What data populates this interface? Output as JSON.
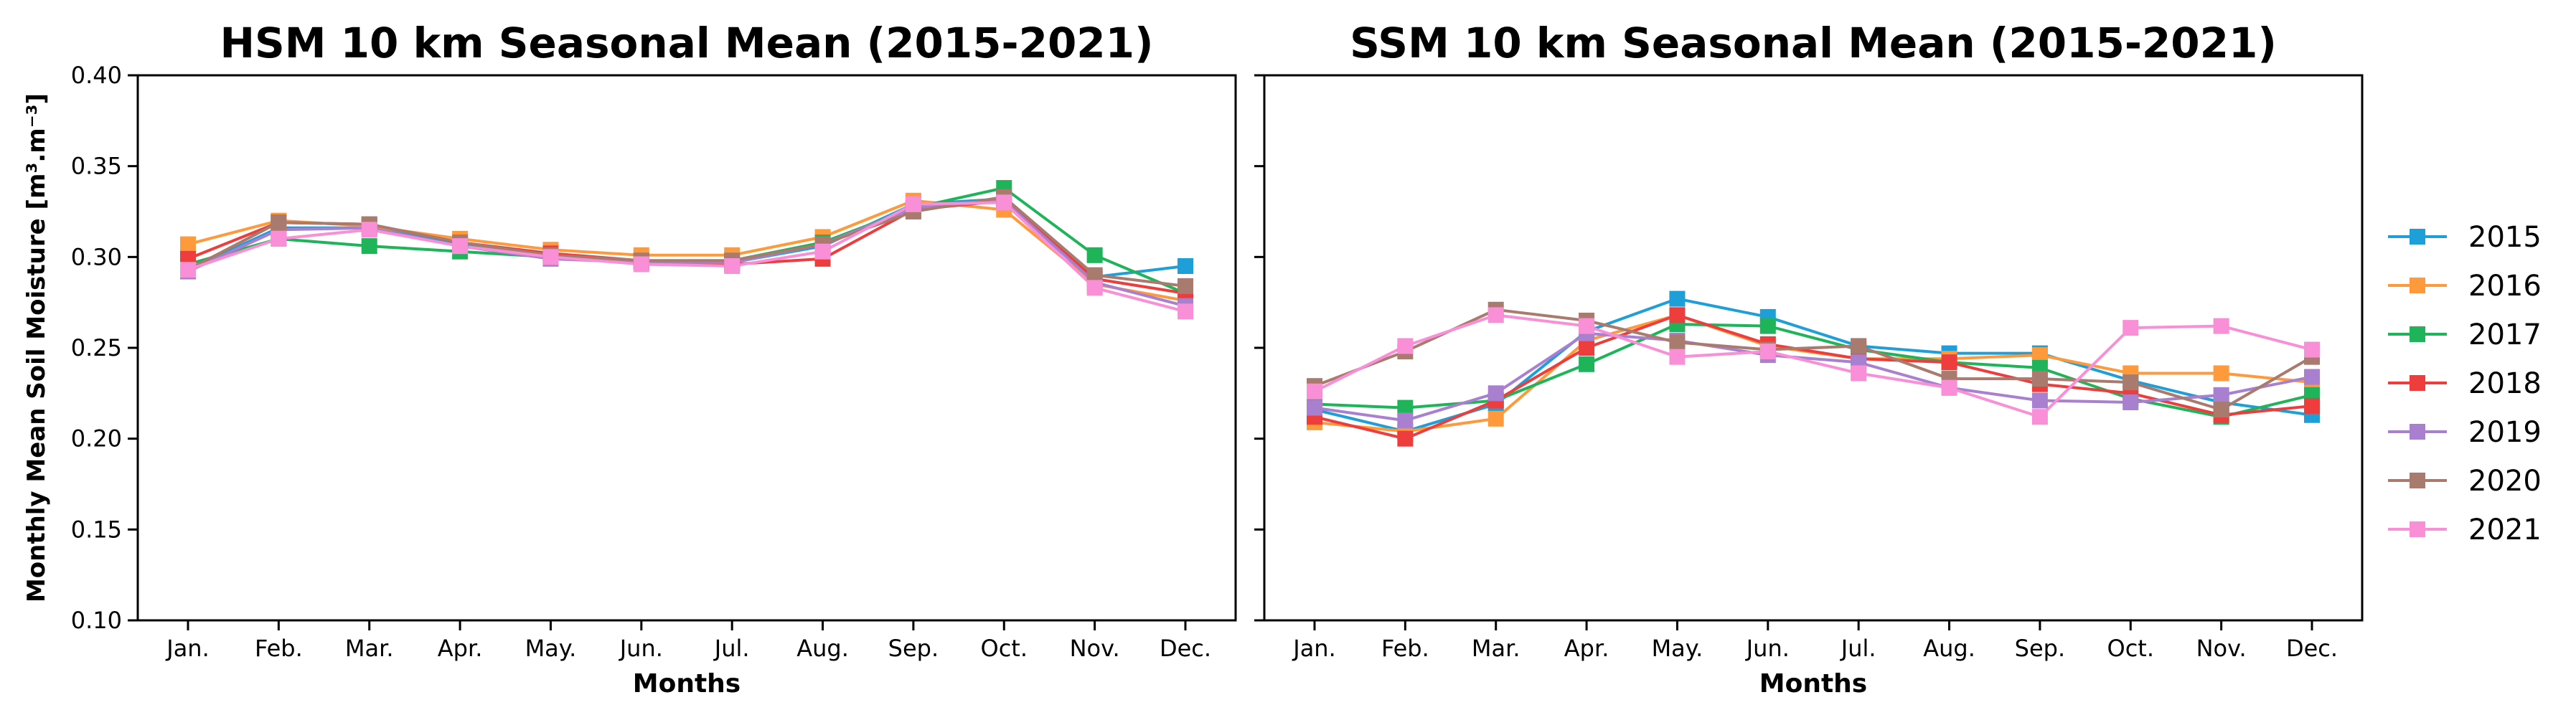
{
  "chart_data": [
    {
      "type": "line",
      "title": "HSM 10 km Seasonal Mean (2015-2021)",
      "xlabel": "Months",
      "ylabel": "Monthly Mean Soil Moisture [m³.m⁻³]",
      "ylim": [
        0.1,
        0.4
      ],
      "yticks": [
        "0.10",
        "0.15",
        "0.20",
        "0.25",
        "0.30",
        "0.35",
        "0.40"
      ],
      "categories": [
        "Jan.",
        "Feb.",
        "Mar.",
        "Apr.",
        "May.",
        "Jun.",
        "Jul.",
        "Aug.",
        "Sep.",
        "Oct.",
        "Nov.",
        "Dec."
      ],
      "series": [
        {
          "name": "2015",
          "values": [
            0.293,
            0.316,
            0.316,
            0.307,
            0.3,
            0.297,
            0.297,
            0.306,
            0.329,
            0.332,
            0.289,
            0.295
          ]
        },
        {
          "name": "2016",
          "values": [
            0.307,
            0.32,
            0.317,
            0.31,
            0.304,
            0.301,
            0.301,
            0.311,
            0.331,
            0.326,
            0.285,
            0.276
          ]
        },
        {
          "name": "2017",
          "values": [
            0.296,
            0.31,
            0.306,
            0.303,
            0.3,
            0.298,
            0.298,
            0.308,
            0.327,
            0.338,
            0.301,
            0.28
          ]
        },
        {
          "name": "2018",
          "values": [
            0.299,
            0.319,
            0.318,
            0.308,
            0.302,
            0.298,
            0.296,
            0.299,
            0.326,
            0.331,
            0.288,
            0.28
          ]
        },
        {
          "name": "2019",
          "values": [
            0.292,
            0.315,
            0.316,
            0.306,
            0.299,
            0.297,
            0.297,
            0.307,
            0.327,
            0.331,
            0.286,
            0.273
          ]
        },
        {
          "name": "2020",
          "values": [
            0.293,
            0.319,
            0.318,
            0.308,
            0.301,
            0.298,
            0.298,
            0.307,
            0.325,
            0.333,
            0.29,
            0.284
          ]
        },
        {
          "name": "2021",
          "values": [
            0.293,
            0.31,
            0.315,
            0.306,
            0.3,
            0.296,
            0.295,
            0.303,
            0.329,
            0.33,
            0.283,
            0.27
          ]
        }
      ]
    },
    {
      "type": "line",
      "title": "SSM 10 km Seasonal Mean (2015-2021)",
      "xlabel": "Months",
      "ylabel": "",
      "ylim": [
        0.1,
        0.4
      ],
      "yticks": [],
      "categories": [
        "Jan.",
        "Feb.",
        "Mar.",
        "Apr.",
        "May.",
        "Jun.",
        "Jul.",
        "Aug.",
        "Sep.",
        "Oct.",
        "Nov.",
        "Dec."
      ],
      "series": [
        {
          "name": "2015",
          "values": [
            0.216,
            0.204,
            0.219,
            0.259,
            0.277,
            0.267,
            0.251,
            0.247,
            0.247,
            0.232,
            0.22,
            0.213
          ]
        },
        {
          "name": "2016",
          "values": [
            0.209,
            0.204,
            0.211,
            0.254,
            0.268,
            0.251,
            0.244,
            0.244,
            0.246,
            0.236,
            0.236,
            0.231
          ]
        },
        {
          "name": "2017",
          "values": [
            0.219,
            0.217,
            0.221,
            0.241,
            0.263,
            0.262,
            0.249,
            0.242,
            0.239,
            0.222,
            0.212,
            0.224
          ]
        },
        {
          "name": "2018",
          "values": [
            0.212,
            0.2,
            0.221,
            0.25,
            0.268,
            0.252,
            0.244,
            0.242,
            0.23,
            0.225,
            0.213,
            0.218
          ]
        },
        {
          "name": "2019",
          "values": [
            0.217,
            0.21,
            0.225,
            0.258,
            0.254,
            0.246,
            0.242,
            0.228,
            0.221,
            0.22,
            0.224,
            0.234
          ]
        },
        {
          "name": "2020",
          "values": [
            0.229,
            0.248,
            0.271,
            0.265,
            0.253,
            0.249,
            0.251,
            0.233,
            0.233,
            0.231,
            0.216,
            0.245
          ]
        },
        {
          "name": "2021",
          "values": [
            0.226,
            0.251,
            0.268,
            0.262,
            0.245,
            0.248,
            0.236,
            0.228,
            0.212,
            0.261,
            0.262,
            0.249
          ]
        }
      ]
    }
  ],
  "legend": {
    "placement": "right",
    "entries": [
      "2015",
      "2016",
      "2017",
      "2018",
      "2019",
      "2020",
      "2021"
    ]
  },
  "colors": {
    "2015": "#1f9fd8",
    "2016": "#ff9a3c",
    "2017": "#1fb45a",
    "2018": "#ee3d3d",
    "2019": "#a97fd0",
    "2020": "#a97a6e",
    "2021": "#f98fd6"
  }
}
